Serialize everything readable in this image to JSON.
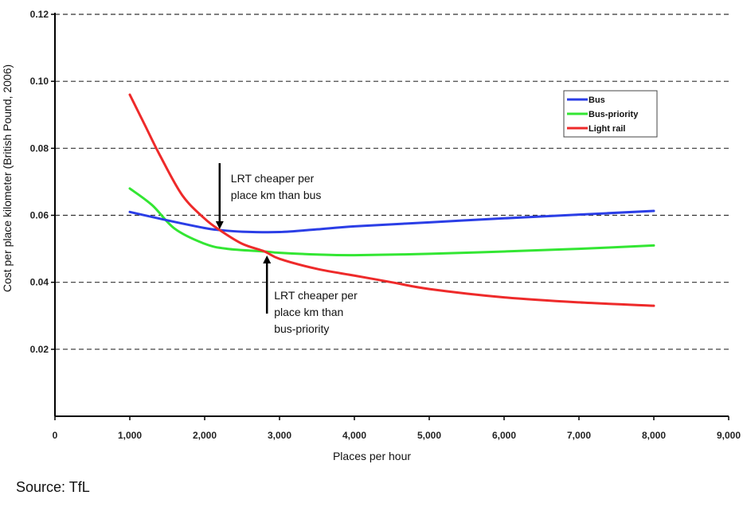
{
  "chart_data": {
    "type": "line",
    "xlabel": "Places per hour",
    "ylabel": "Cost per place kilometer (British Pound, 2006)",
    "xlim": [
      0,
      9000
    ],
    "ylim": [
      0,
      0.12
    ],
    "x_ticks": [
      "0",
      "1,000",
      "2,000",
      "3,000",
      "4,000",
      "5,000",
      "6,000",
      "7,000",
      "8,000",
      "9,000"
    ],
    "y_ticks": [
      "0.02",
      "0.04",
      "0.06",
      "0.08",
      "0.10",
      "0.12"
    ],
    "grid": "horizontal dashed",
    "legend_position": "top-right",
    "series": [
      {
        "name": "Bus",
        "color": "#2b3ee6",
        "x": [
          1000,
          1500,
          2000,
          2200,
          2500,
          3000,
          3500,
          4000,
          5000,
          6000,
          7000,
          8000
        ],
        "y": [
          0.061,
          0.0585,
          0.0562,
          0.0556,
          0.0551,
          0.055,
          0.0558,
          0.0567,
          0.0579,
          0.0591,
          0.0602,
          0.0613
        ]
      },
      {
        "name": "Bus-priority",
        "color": "#33e633",
        "x": [
          1000,
          1300,
          1600,
          2000,
          2300,
          2800,
          3000,
          3500,
          4000,
          5000,
          6000,
          7000,
          8000
        ],
        "y": [
          0.068,
          0.063,
          0.056,
          0.0515,
          0.05,
          0.0492,
          0.0488,
          0.0483,
          0.0481,
          0.0485,
          0.0492,
          0.05,
          0.051
        ]
      },
      {
        "name": "Light rail",
        "color": "#ee2a2a",
        "x": [
          1000,
          1200,
          1400,
          1700,
          2000,
          2200,
          2500,
          2800,
          3000,
          3500,
          4000,
          4500,
          5000,
          6000,
          7000,
          8000
        ],
        "y": [
          0.096,
          0.087,
          0.078,
          0.066,
          0.059,
          0.0556,
          0.0515,
          0.0492,
          0.047,
          0.044,
          0.042,
          0.04,
          0.038,
          0.0355,
          0.034,
          0.033
        ]
      }
    ],
    "annotations": [
      {
        "lines": [
          "LRT cheaper per",
          "place km than bus"
        ],
        "x": 2200,
        "y": 0.0556
      },
      {
        "lines": [
          "LRT cheaper per",
          "place km than",
          "bus-priority"
        ],
        "x": 2800,
        "y": 0.0492
      }
    ]
  },
  "source_text": "Source: TfL"
}
